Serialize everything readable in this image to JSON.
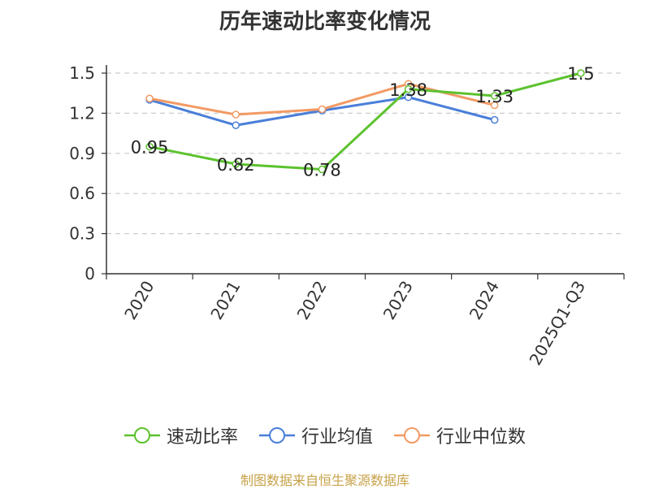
{
  "chart_data": {
    "type": "line",
    "title": "历年速动比率变化情况",
    "categories": [
      "2020",
      "2021",
      "2022",
      "2023",
      "2024",
      "2025Q1-Q3"
    ],
    "ylim": [
      0,
      1.5
    ],
    "yticks": [
      0,
      0.3,
      0.6,
      0.9,
      1.2,
      1.5
    ],
    "ytick_labels": [
      "0",
      "0.3",
      "0.6",
      "0.9",
      "1.2",
      "1.5"
    ],
    "grid": true,
    "legend_position": "bottom",
    "series": [
      {
        "name": "速动比率",
        "color": "#5cc22e",
        "values": [
          0.95,
          0.82,
          0.78,
          1.38,
          1.33,
          1.5
        ],
        "labels": [
          "0.95",
          "0.82",
          "0.78",
          "1.38",
          "1.33",
          "1.5"
        ]
      },
      {
        "name": "行业均值",
        "color": "#4a7fd9",
        "values": [
          1.3,
          1.11,
          1.22,
          1.32,
          1.15,
          null
        ]
      },
      {
        "name": "行业中位数",
        "color": "#f29a64",
        "values": [
          1.31,
          1.19,
          1.23,
          1.42,
          1.26,
          null
        ]
      }
    ]
  },
  "footer": {
    "source": "制图数据来自恒生聚源数据库"
  }
}
